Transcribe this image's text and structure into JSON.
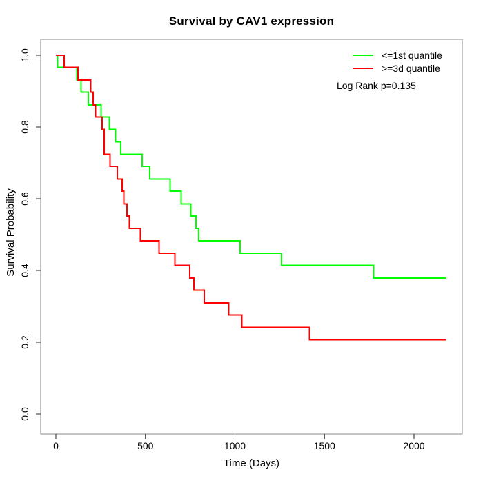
{
  "chart_data": {
    "type": "line",
    "subtype": "kaplan-meier-step",
    "title": "Survival by CAV1 expression",
    "xlabel": "Time (Days)",
    "ylabel": "Survival Probability",
    "xlim": [
      0,
      2200
    ],
    "ylim": [
      0.0,
      1.0
    ],
    "xticks": [
      "0",
      "500",
      "1000",
      "1500",
      "2000"
    ],
    "yticks": [
      "0.0",
      "0.2",
      "0.4",
      "0.6",
      "0.8",
      "1.0"
    ],
    "grid": false,
    "legend_position": "top-right",
    "annotation": "Log Rank p=0.135",
    "frame_color": "#888888",
    "tick_color": "#222222",
    "series": [
      {
        "name": "<=1st quantile",
        "color": "#00ff00",
        "points": [
          [
            0,
            1.0
          ],
          [
            10,
            0.966
          ],
          [
            118,
            0.931
          ],
          [
            140,
            0.897
          ],
          [
            182,
            0.862
          ],
          [
            253,
            0.828
          ],
          [
            298,
            0.793
          ],
          [
            333,
            0.759
          ],
          [
            362,
            0.724
          ],
          [
            482,
            0.69
          ],
          [
            525,
            0.655
          ],
          [
            638,
            0.621
          ],
          [
            700,
            0.586
          ],
          [
            754,
            0.552
          ],
          [
            783,
            0.517
          ],
          [
            797,
            0.483
          ],
          [
            1028,
            0.448
          ],
          [
            1261,
            0.414
          ],
          [
            1775,
            0.379
          ],
          [
            2180,
            0.379
          ]
        ]
      },
      {
        "name": ">=3d quantile",
        "color": "#ff0000",
        "points": [
          [
            0,
            1.0
          ],
          [
            47,
            0.966
          ],
          [
            124,
            0.931
          ],
          [
            195,
            0.897
          ],
          [
            208,
            0.862
          ],
          [
            221,
            0.828
          ],
          [
            259,
            0.793
          ],
          [
            270,
            0.724
          ],
          [
            302,
            0.69
          ],
          [
            343,
            0.655
          ],
          [
            369,
            0.621
          ],
          [
            379,
            0.586
          ],
          [
            397,
            0.552
          ],
          [
            410,
            0.517
          ],
          [
            473,
            0.483
          ],
          [
            577,
            0.448
          ],
          [
            664,
            0.414
          ],
          [
            748,
            0.379
          ],
          [
            771,
            0.345
          ],
          [
            828,
            0.31
          ],
          [
            966,
            0.276
          ],
          [
            1039,
            0.241
          ],
          [
            1416,
            0.207
          ],
          [
            2180,
            0.207
          ]
        ]
      }
    ]
  }
}
